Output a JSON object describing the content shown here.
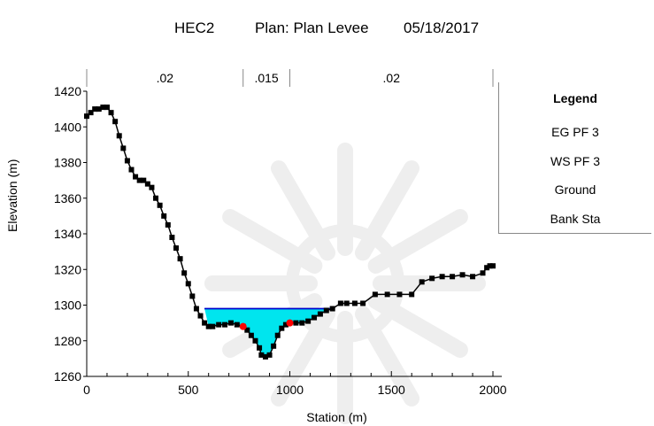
{
  "title": {
    "name": "HEC2",
    "plan": "Plan: Plan Levee",
    "date": "05/18/2017"
  },
  "colors": {
    "water_fill": "#00e5ee",
    "eg_line": "#0000cc",
    "ws_line": "#0000cc",
    "ground": "#000000",
    "bank_sta": "#ff0000"
  },
  "legend": {
    "title": "Legend",
    "items": [
      {
        "label": "EG PF 3",
        "style": "blue-line"
      },
      {
        "label": "WS PF 3",
        "style": "blue-line"
      },
      {
        "label": "Ground",
        "style": "black-line-square"
      },
      {
        "label": "Bank Sta",
        "style": "red-dot"
      }
    ]
  },
  "chart_data": {
    "type": "line",
    "title": "HEC2        Plan: Plan Levee     05/18/2017",
    "xlabel": "Station (m)",
    "ylabel": "Elevation (m)",
    "xlim": [
      0,
      2000
    ],
    "ylim": [
      1260,
      1420
    ],
    "x_ticks": [
      0,
      500,
      1000,
      1500,
      2000
    ],
    "y_ticks": [
      1260,
      1280,
      1300,
      1320,
      1340,
      1360,
      1380,
      1400,
      1420
    ],
    "manning_n": [
      {
        "label": ".02",
        "from": 0,
        "to": 770
      },
      {
        "label": ".015",
        "from": 770,
        "to": 1000
      },
      {
        "label": ".02",
        "from": 1000,
        "to": 2000
      }
    ],
    "series": [
      {
        "name": "Ground",
        "x": [
          0,
          20,
          40,
          60,
          80,
          100,
          120,
          140,
          160,
          180,
          200,
          220,
          240,
          260,
          280,
          300,
          320,
          340,
          360,
          380,
          400,
          420,
          440,
          460,
          480,
          500,
          520,
          540,
          560,
          580,
          600,
          620,
          650,
          680,
          710,
          740,
          770,
          790,
          810,
          830,
          850,
          860,
          880,
          900,
          920,
          940,
          960,
          980,
          1000,
          1030,
          1060,
          1090,
          1120,
          1150,
          1180,
          1210,
          1250,
          1280,
          1320,
          1360,
          1420,
          1480,
          1540,
          1600,
          1650,
          1700,
          1750,
          1800,
          1850,
          1900,
          1950,
          1970,
          1985,
          2000
        ],
        "y": [
          1406,
          1408,
          1410,
          1410,
          1411,
          1411,
          1408,
          1403,
          1395,
          1388,
          1381,
          1376,
          1372,
          1370,
          1370,
          1368,
          1366,
          1360,
          1356,
          1350,
          1345,
          1338,
          1332,
          1326,
          1318,
          1312,
          1305,
          1298,
          1294,
          1290,
          1288,
          1288,
          1289,
          1289,
          1290,
          1289,
          1288,
          1286,
          1283,
          1280,
          1276,
          1272,
          1271,
          1272,
          1277,
          1283,
          1287,
          1289,
          1290,
          1290,
          1290,
          1291,
          1293,
          1295,
          1297,
          1298,
          1301,
          1301,
          1301,
          1301,
          1306,
          1306,
          1306,
          1306,
          1313,
          1315,
          1316,
          1316,
          1317,
          1316,
          1318,
          1321,
          1322,
          1322
        ]
      },
      {
        "name": "WS PF 3",
        "x": [
          580,
          1210
        ],
        "y": [
          1298,
          1298
        ]
      },
      {
        "name": "EG PF 3",
        "x": [
          580,
          1210
        ],
        "y": [
          1298,
          1298
        ]
      },
      {
        "name": "Bank Sta",
        "x": [
          770,
          1000
        ],
        "y": [
          1288,
          1290
        ]
      }
    ],
    "grid": false,
    "legend_position": "right"
  }
}
